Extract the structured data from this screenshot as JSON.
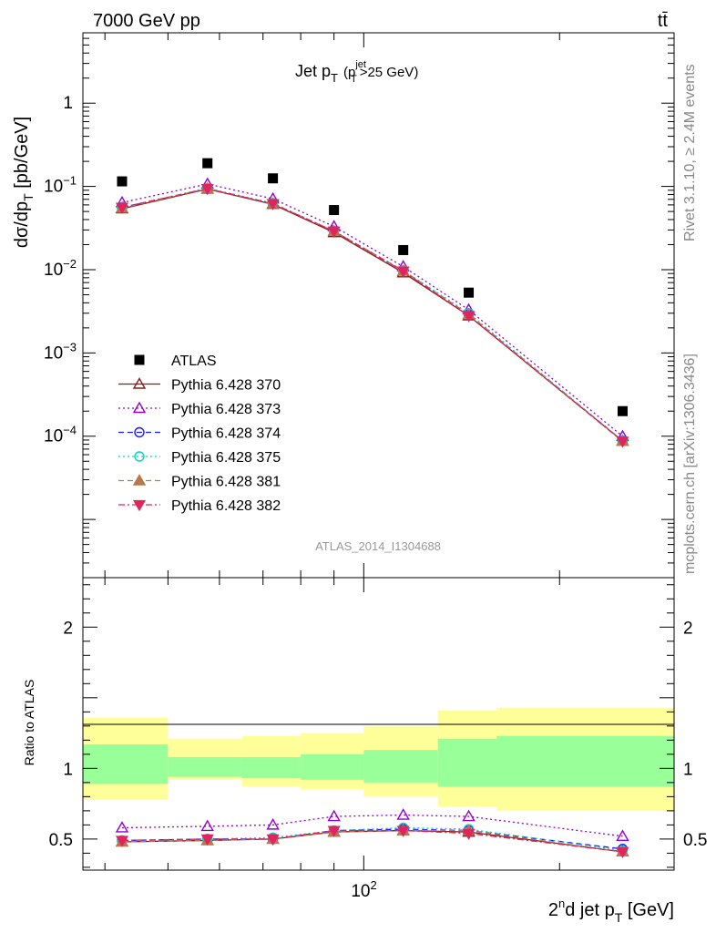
{
  "header": {
    "left": "7000 GeV pp",
    "right": "tt̄"
  },
  "side_text": {
    "rivet": "Rivet 3.1.10, ≥ 2.4M events",
    "mcplots": "mcplots.cern.ch [arXiv:1306.3436]"
  },
  "watermark": "ATLAS_2014_I1304688",
  "chart_data": [
    {
      "type": "line",
      "title": "Jet pT (pTjet>25 GeV)",
      "title_parts": {
        "main": "Jet p",
        "sub": "T",
        "paren_open": "(p",
        "paren_sup": "jet",
        "paren_sub": "T",
        "paren_rest": ">25 GeV)"
      },
      "ylabel": "dσ/dpT [pb/GeV]",
      "ylabel_parts": {
        "main": "dσ/dp",
        "sub": "T",
        "unit": " [pb/GeV]"
      },
      "xscale": "log",
      "yscale": "log",
      "xlim": [
        37,
        300
      ],
      "ylim": [
        2e-06,
        7
      ],
      "y_ticks": [
        {
          "value": 1,
          "base": "1",
          "exp": ""
        },
        {
          "value": 0.1,
          "base": "10",
          "exp": "−1"
        },
        {
          "value": 0.01,
          "base": "10",
          "exp": "−2"
        },
        {
          "value": 0.001,
          "base": "10",
          "exp": "−3"
        },
        {
          "value": 0.0001,
          "base": "10",
          "exp": "−4"
        }
      ],
      "legend_position": "bottom-left",
      "x": [
        42.5,
        57.5,
        72.5,
        90,
        115,
        145,
        250
      ],
      "series": [
        {
          "name": "ATLAS",
          "color": "#000000",
          "marker": "square",
          "dash": "none",
          "values": [
            0.115,
            0.19,
            0.125,
            0.052,
            0.0172,
            0.0053,
            0.0002
          ]
        },
        {
          "name": "Pythia 6.428 370",
          "color": "#8b1a1a",
          "marker": "triangle-open",
          "dash": "solid",
          "values": [
            0.054,
            0.093,
            0.061,
            0.028,
            0.0092,
            0.0028,
            8.75e-05
          ]
        },
        {
          "name": "Pythia 6.428 373",
          "color": "#9400d3",
          "marker": "triangle-open",
          "dash": "dotted",
          "values": [
            0.064,
            0.107,
            0.071,
            0.033,
            0.0109,
            0.0033,
            9.96e-05
          ]
        },
        {
          "name": "Pythia 6.428 374",
          "color": "#1a1aff",
          "marker": "circle-open",
          "dash": "dashed",
          "values": [
            0.056,
            0.094,
            0.062,
            0.029,
            0.0097,
            0.0029,
            8.82e-05
          ]
        },
        {
          "name": "Pythia 6.428 375",
          "color": "#00d5c0",
          "marker": "circle-open",
          "dash": "dotted",
          "values": [
            0.056,
            0.095,
            0.063,
            0.029,
            0.0098,
            0.003,
            8.78e-05
          ]
        },
        {
          "name": "Pythia 6.428 381",
          "color": "#b8784a",
          "marker": "triangle-filled",
          "dash": "dashed",
          "values": [
            0.055,
            0.094,
            0.062,
            0.029,
            0.0096,
            0.0029,
            8.71e-05
          ]
        },
        {
          "name": "Pythia 6.428 382",
          "color": "#e0245e",
          "marker": "triangle-down-filled",
          "dash": "dashdot",
          "values": [
            0.056,
            0.094,
            0.062,
            0.029,
            0.0096,
            0.0028,
            8.68e-05
          ]
        }
      ]
    },
    {
      "type": "line",
      "ylabel": "Ratio to ATLAS",
      "xlabel": "2nd jet pT [GeV]",
      "xlabel_parts": {
        "a": "2",
        "sup": "n",
        "b": "d jet p",
        "sub": "T",
        "unit": " [GeV]"
      },
      "xscale": "log",
      "xlim": [
        37,
        300
      ],
      "ylim": [
        0.28,
        2.35
      ],
      "y_ticks": [
        {
          "value": 0.5,
          "label": "0.5"
        },
        {
          "value": 1,
          "label": "1"
        },
        {
          "value": 2,
          "label": "2"
        }
      ],
      "x_ticks": [
        {
          "value": 100,
          "base": "10",
          "exp": "2"
        }
      ],
      "bands": [
        {
          "x_low": 37,
          "x_high": 50,
          "outer": [
            0.78,
            1.36
          ],
          "inner": [
            0.89,
            1.17
          ]
        },
        {
          "x_low": 50,
          "x_high": 65,
          "outer": [
            0.92,
            1.21
          ],
          "inner": [
            0.94,
            1.08
          ]
        },
        {
          "x_low": 65,
          "x_high": 80,
          "outer": [
            0.87,
            1.23
          ],
          "inner": [
            0.93,
            1.08
          ]
        },
        {
          "x_low": 80,
          "x_high": 100,
          "outer": [
            0.85,
            1.25
          ],
          "inner": [
            0.92,
            1.1
          ]
        },
        {
          "x_low": 100,
          "x_high": 130,
          "outer": [
            0.8,
            1.3
          ],
          "inner": [
            0.9,
            1.13
          ]
        },
        {
          "x_low": 130,
          "x_high": 160,
          "outer": [
            0.73,
            1.41
          ],
          "inner": [
            0.87,
            1.21
          ]
        },
        {
          "x_low": 160,
          "x_high": 300,
          "outer": [
            0.7,
            1.43
          ],
          "inner": [
            0.87,
            1.23
          ]
        }
      ],
      "bands_colors": {
        "outer": "#ffff99",
        "inner": "#99ff99"
      },
      "x": [
        42.5,
        57.5,
        72.5,
        90,
        115,
        145,
        250
      ],
      "series": [
        {
          "name": "Pythia 6.428 370",
          "color": "#8b1a1a",
          "marker": "triangle-open",
          "dash": "solid",
          "values": [
            0.48,
            0.49,
            0.5,
            0.55,
            0.56,
            0.55,
            0.41
          ]
        },
        {
          "name": "Pythia 6.428 373",
          "color": "#9400d3",
          "marker": "triangle-open",
          "dash": "dotted",
          "values": [
            0.58,
            0.59,
            0.6,
            0.66,
            0.67,
            0.66,
            0.52
          ]
        },
        {
          "name": "Pythia 6.428 374",
          "color": "#1a1aff",
          "marker": "circle-open",
          "dash": "dashed",
          "values": [
            0.49,
            0.5,
            0.5,
            0.56,
            0.57,
            0.56,
            0.43
          ]
        },
        {
          "name": "Pythia 6.428 375",
          "color": "#00d5c0",
          "marker": "circle-open",
          "dash": "dotted",
          "values": [
            0.49,
            0.5,
            0.51,
            0.56,
            0.58,
            0.57,
            0.42
          ]
        },
        {
          "name": "Pythia 6.428 381",
          "color": "#b8784a",
          "marker": "triangle-filled",
          "dash": "dashed",
          "values": [
            0.48,
            0.49,
            0.5,
            0.55,
            0.56,
            0.56,
            0.41
          ]
        },
        {
          "name": "Pythia 6.428 382",
          "color": "#e0245e",
          "marker": "triangle-down-filled",
          "dash": "dashdot",
          "values": [
            0.49,
            0.5,
            0.5,
            0.56,
            0.56,
            0.54,
            0.41
          ]
        }
      ]
    }
  ]
}
